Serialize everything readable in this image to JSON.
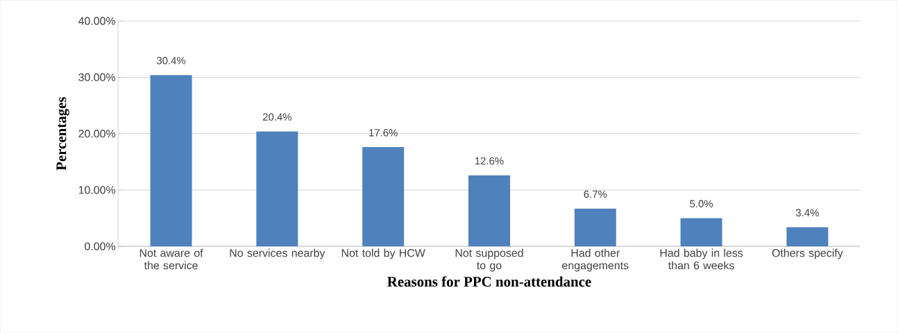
{
  "chart_data": {
    "type": "bar",
    "xlabel": "Reasons for PPC non-attendance",
    "ylabel": "Percentages",
    "categories": [
      "Not aware of the service",
      "No services nearby",
      "Not told by HCW",
      "Not supposed to go",
      "Had other engagements",
      "Had baby in less than 6 weeks",
      "Others specify"
    ],
    "values": [
      30.4,
      20.4,
      17.6,
      12.6,
      6.7,
      5.0,
      3.4
    ],
    "value_labels": [
      "30.4%",
      "20.4%",
      "17.6%",
      "12.6%",
      "6.7%",
      "5.0%",
      "3.4%"
    ],
    "color": "#4f81bd",
    "ylim": [
      0,
      40
    ],
    "yticks": [
      {
        "value": 0,
        "label": "0.00%"
      },
      {
        "value": 10,
        "label": "10.00%"
      },
      {
        "value": 20,
        "label": "20.00%"
      },
      {
        "value": 30,
        "label": "30.00%"
      },
      {
        "value": 40,
        "label": "40.00%"
      }
    ],
    "grid": "y"
  }
}
